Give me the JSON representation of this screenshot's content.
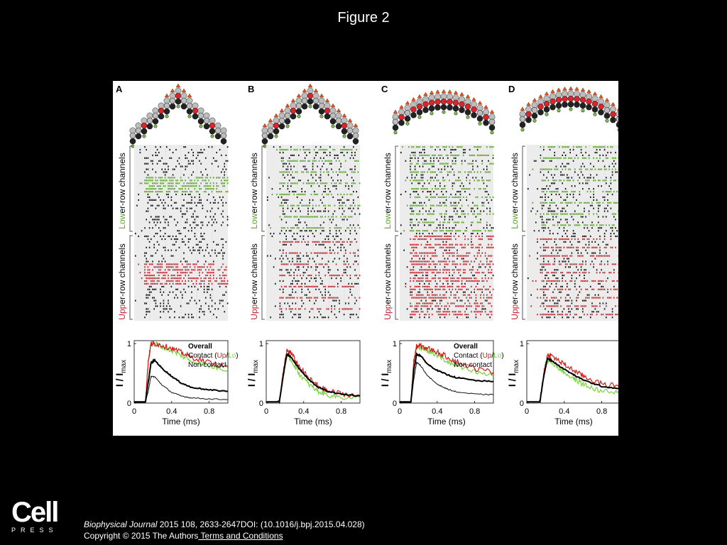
{
  "slide": {
    "title": "Figure 2"
  },
  "figure": {
    "panels": [
      {
        "label": "A",
        "lower_label_colored": "Low",
        "lower_label_rest": "er-row channels",
        "upper_label_colored": "Upp",
        "upper_label_rest": "er-row channels",
        "has_legend": true
      },
      {
        "label": "B",
        "lower_label_colored": "Low",
        "lower_label_rest": "er-row channels",
        "upper_label_colored": "Upp",
        "upper_label_rest": "er-row channels",
        "has_legend": false
      },
      {
        "label": "C",
        "lower_label_colored": "Low",
        "lower_label_rest": "er-row channels",
        "upper_label_colored": "Upp",
        "upper_label_rest": "er-row channels",
        "has_legend": true
      },
      {
        "label": "D",
        "lower_label_colored": "Low",
        "lower_label_rest": "er-row channels",
        "upper_label_colored": "Upp",
        "upper_label_rest": "er-row channels",
        "has_legend": false
      }
    ],
    "legend": {
      "overall": "Overall",
      "contact_prefix": "Contact (",
      "contact_up": "Up",
      "contact_slash": "/",
      "contact_lo": "Lo",
      "contact_suffix": ")",
      "noncontact": "Non-contact"
    },
    "axis": {
      "ylabel": "I / I",
      "ylabel_sub": "max",
      "yticks": [
        "0",
        "1"
      ],
      "xticks": [
        "0",
        "0.4",
        "0.8"
      ],
      "xlabel": "Time (ms)"
    },
    "colors": {
      "lower_green": "#5aa52a",
      "upper_red": "#c0262d",
      "contact_red": "#d7191c",
      "contact_green": "#7bd43a",
      "raster_bg": "#ececec"
    }
  },
  "chart_data": [
    {
      "type": "line",
      "panel": "A",
      "xlabel": "Time (ms)",
      "ylabel": "I / Imax",
      "xlim": [
        0,
        1.0
      ],
      "ylim": [
        0,
        1.05
      ],
      "xticks": [
        0,
        0.4,
        0.8
      ],
      "yticks": [
        0,
        1
      ],
      "series": [
        {
          "name": "Overall",
          "x": [
            0,
            0.12,
            0.15,
            0.18,
            0.22,
            0.3,
            0.4,
            0.5,
            0.6,
            0.8,
            1.0
          ],
          "y": [
            0.02,
            0.02,
            0.35,
            0.68,
            0.72,
            0.58,
            0.45,
            0.34,
            0.27,
            0.22,
            0.2
          ]
        },
        {
          "name": "Contact (Up)",
          "x": [
            0,
            0.12,
            0.15,
            0.18,
            0.22,
            0.3,
            0.4,
            0.5,
            0.6,
            0.8,
            1.0
          ],
          "y": [
            0.02,
            0.02,
            0.7,
            1.0,
            1.0,
            0.97,
            0.92,
            0.85,
            0.78,
            0.68,
            0.6
          ]
        },
        {
          "name": "Contact (Lo)",
          "x": [
            0,
            0.12,
            0.15,
            0.18,
            0.22,
            0.3,
            0.4,
            0.5,
            0.6,
            0.8,
            1.0
          ],
          "y": [
            0.02,
            0.02,
            0.7,
            1.0,
            1.0,
            0.95,
            0.88,
            0.8,
            0.72,
            0.62,
            0.56
          ]
        },
        {
          "name": "Non-contact",
          "x": [
            0,
            0.12,
            0.15,
            0.18,
            0.22,
            0.3,
            0.4,
            0.5,
            0.6,
            0.8,
            1.0
          ],
          "y": [
            0.01,
            0.01,
            0.2,
            0.45,
            0.44,
            0.3,
            0.18,
            0.12,
            0.09,
            0.07,
            0.06
          ]
        }
      ]
    },
    {
      "type": "line",
      "panel": "B",
      "xlabel": "Time (ms)",
      "ylabel": "I / Imax",
      "xlim": [
        0,
        1.0
      ],
      "ylim": [
        0,
        1.05
      ],
      "xticks": [
        0,
        0.4,
        0.8
      ],
      "yticks": [
        0,
        1
      ],
      "series": [
        {
          "name": "Overall",
          "x": [
            0,
            0.14,
            0.18,
            0.22,
            0.26,
            0.35,
            0.45,
            0.55,
            0.65,
            0.8,
            1.0
          ],
          "y": [
            0.02,
            0.02,
            0.45,
            0.82,
            0.78,
            0.58,
            0.4,
            0.27,
            0.2,
            0.15,
            0.12
          ]
        },
        {
          "name": "Contact (Up)",
          "x": [
            0,
            0.14,
            0.18,
            0.22,
            0.26,
            0.35,
            0.45,
            0.55,
            0.65,
            0.8,
            1.0
          ],
          "y": [
            0.02,
            0.02,
            0.5,
            0.88,
            0.85,
            0.62,
            0.42,
            0.29,
            0.21,
            0.16,
            0.12
          ]
        },
        {
          "name": "Contact (Lo)",
          "x": [
            0,
            0.14,
            0.18,
            0.22,
            0.26,
            0.35,
            0.45,
            0.55,
            0.65,
            0.8,
            1.0
          ],
          "y": [
            0.02,
            0.02,
            0.45,
            0.8,
            0.74,
            0.5,
            0.32,
            0.2,
            0.14,
            0.1,
            0.08
          ]
        }
      ]
    },
    {
      "type": "line",
      "panel": "C",
      "xlabel": "Time (ms)",
      "ylabel": "I / Imax",
      "xlim": [
        0,
        1.0
      ],
      "ylim": [
        0,
        1.05
      ],
      "xticks": [
        0,
        0.4,
        0.8
      ],
      "yticks": [
        0,
        1
      ],
      "series": [
        {
          "name": "Overall",
          "x": [
            0,
            0.12,
            0.15,
            0.18,
            0.22,
            0.3,
            0.4,
            0.5,
            0.6,
            0.8,
            1.0
          ],
          "y": [
            0.02,
            0.02,
            0.55,
            0.82,
            0.8,
            0.65,
            0.55,
            0.48,
            0.43,
            0.38,
            0.36
          ]
        },
        {
          "name": "Contact (Up)",
          "x": [
            0,
            0.12,
            0.15,
            0.18,
            0.22,
            0.3,
            0.4,
            0.5,
            0.6,
            0.8,
            1.0
          ],
          "y": [
            0.02,
            0.02,
            0.7,
            0.95,
            0.96,
            0.92,
            0.86,
            0.78,
            0.7,
            0.58,
            0.52
          ]
        },
        {
          "name": "Contact (Lo)",
          "x": [
            0,
            0.12,
            0.15,
            0.18,
            0.22,
            0.3,
            0.4,
            0.5,
            0.6,
            0.8,
            1.0
          ],
          "y": [
            0.02,
            0.02,
            0.7,
            0.95,
            0.94,
            0.88,
            0.8,
            0.7,
            0.62,
            0.52,
            0.46
          ]
        },
        {
          "name": "Non-contact",
          "x": [
            0,
            0.12,
            0.15,
            0.18,
            0.22,
            0.3,
            0.4,
            0.5,
            0.6,
            0.8,
            1.0
          ],
          "y": [
            0.01,
            0.01,
            0.4,
            0.68,
            0.64,
            0.45,
            0.32,
            0.24,
            0.19,
            0.15,
            0.14
          ]
        }
      ]
    },
    {
      "type": "line",
      "panel": "D",
      "xlabel": "Time (ms)",
      "ylabel": "I / Imax",
      "xlim": [
        0,
        1.0
      ],
      "ylim": [
        0,
        1.05
      ],
      "xticks": [
        0,
        0.4,
        0.8
      ],
      "yticks": [
        0,
        1
      ],
      "series": [
        {
          "name": "Overall",
          "x": [
            0,
            0.14,
            0.18,
            0.22,
            0.26,
            0.35,
            0.45,
            0.55,
            0.65,
            0.8,
            1.0
          ],
          "y": [
            0.02,
            0.02,
            0.45,
            0.75,
            0.72,
            0.62,
            0.52,
            0.43,
            0.36,
            0.28,
            0.24
          ]
        },
        {
          "name": "Contact (Up)",
          "x": [
            0,
            0.14,
            0.18,
            0.22,
            0.26,
            0.35,
            0.45,
            0.55,
            0.65,
            0.8,
            1.0
          ],
          "y": [
            0.02,
            0.02,
            0.5,
            0.8,
            0.8,
            0.7,
            0.6,
            0.5,
            0.42,
            0.32,
            0.28
          ]
        },
        {
          "name": "Contact (Lo)",
          "x": [
            0,
            0.14,
            0.18,
            0.22,
            0.26,
            0.35,
            0.45,
            0.55,
            0.65,
            0.8,
            1.0
          ],
          "y": [
            0.02,
            0.02,
            0.45,
            0.72,
            0.7,
            0.58,
            0.46,
            0.36,
            0.28,
            0.2,
            0.17
          ]
        }
      ]
    }
  ],
  "footer": {
    "logo_text": "Cell",
    "logo_sub": "PRESS",
    "journal": "Biophysical Journal",
    "citation_rest": " 2015 108, 2633-2647DOI: (10.1016/j.bpj.2015.04.028)",
    "copyright": "Copyright © 2015 The Authors",
    "terms_link": " Terms and Conditions"
  }
}
